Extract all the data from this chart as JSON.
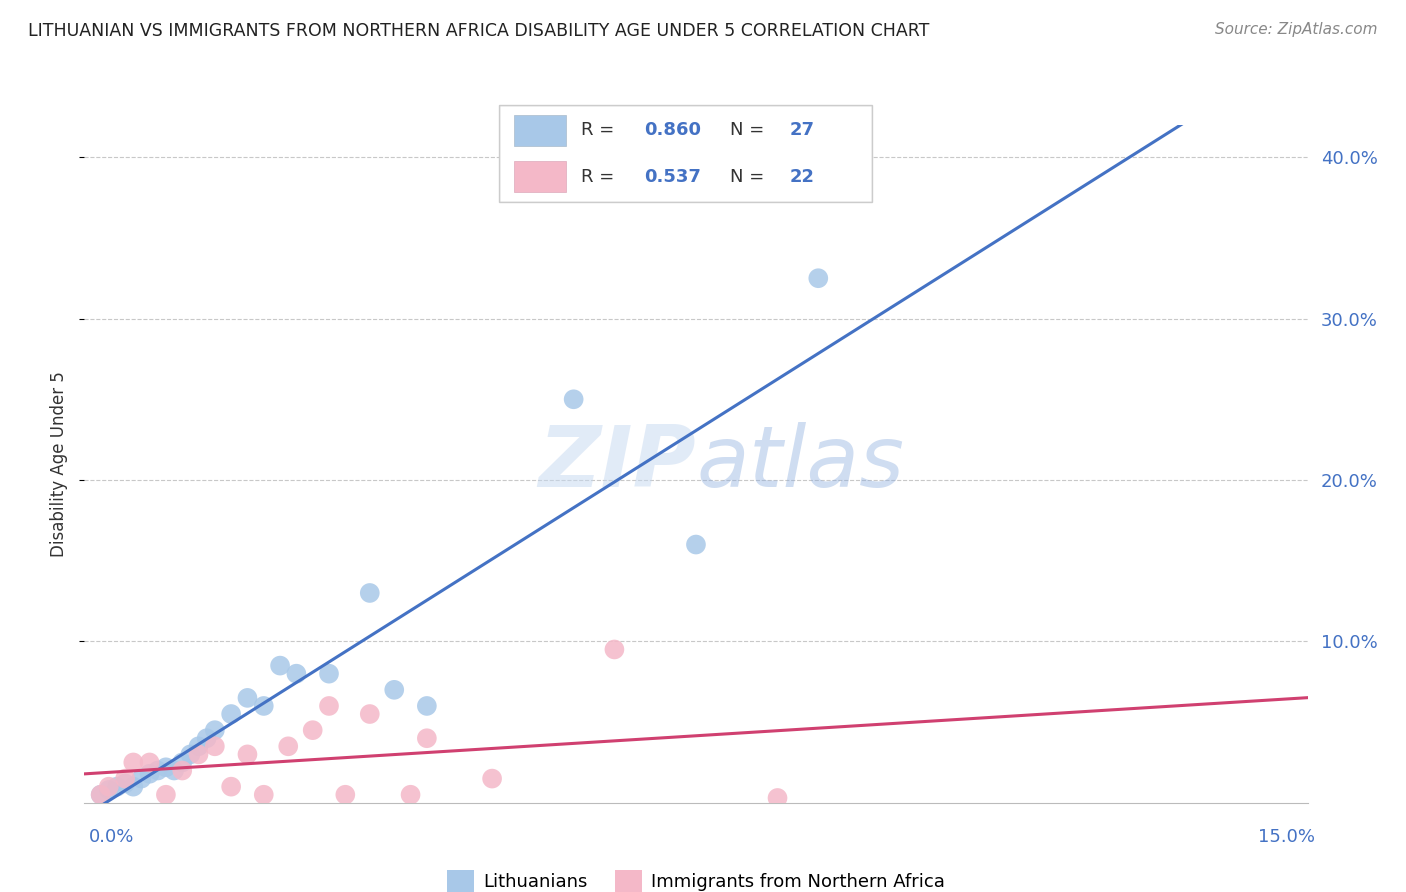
{
  "title": "LITHUANIAN VS IMMIGRANTS FROM NORTHERN AFRICA DISABILITY AGE UNDER 5 CORRELATION CHART",
  "source": "Source: ZipAtlas.com",
  "ylabel": "Disability Age Under 5",
  "xlim": [
    0.0,
    0.15
  ],
  "ylim": [
    0.0,
    0.42
  ],
  "yticks": [
    0.1,
    0.2,
    0.3,
    0.4
  ],
  "ytick_labels": [
    "10.0%",
    "20.0%",
    "30.0%",
    "40.0%"
  ],
  "xtick_labels": [
    "0.0%",
    "15.0%"
  ],
  "legend_blue_r": "0.860",
  "legend_blue_n": "27",
  "legend_pink_r": "0.537",
  "legend_pink_n": "22",
  "blue_scatter_color": "#a8c8e8",
  "blue_line_color": "#4472C4",
  "pink_scatter_color": "#f4b8c8",
  "pink_line_color": "#d04070",
  "grid_color": "#c8c8c8",
  "axis_color": "#4472C4",
  "label_color": "#333333",
  "watermark_color": "#c8d8f0",
  "blue_scatter_x": [
    0.002,
    0.003,
    0.004,
    0.005,
    0.006,
    0.007,
    0.008,
    0.009,
    0.01,
    0.011,
    0.012,
    0.013,
    0.014,
    0.015,
    0.016,
    0.018,
    0.02,
    0.022,
    0.024,
    0.026,
    0.03,
    0.035,
    0.038,
    0.042,
    0.06,
    0.075,
    0.09
  ],
  "blue_scatter_y": [
    0.005,
    0.008,
    0.01,
    0.012,
    0.01,
    0.015,
    0.018,
    0.02,
    0.022,
    0.02,
    0.025,
    0.03,
    0.035,
    0.04,
    0.045,
    0.055,
    0.065,
    0.06,
    0.085,
    0.08,
    0.08,
    0.13,
    0.07,
    0.06,
    0.25,
    0.16,
    0.325
  ],
  "pink_scatter_x": [
    0.002,
    0.003,
    0.005,
    0.006,
    0.008,
    0.01,
    0.012,
    0.014,
    0.016,
    0.018,
    0.02,
    0.022,
    0.025,
    0.028,
    0.03,
    0.032,
    0.035,
    0.04,
    0.042,
    0.05,
    0.065,
    0.085
  ],
  "pink_scatter_y": [
    0.005,
    0.01,
    0.015,
    0.025,
    0.025,
    0.005,
    0.02,
    0.03,
    0.035,
    0.01,
    0.03,
    0.005,
    0.035,
    0.045,
    0.06,
    0.005,
    0.055,
    0.005,
    0.04,
    0.015,
    0.095,
    0.003
  ]
}
